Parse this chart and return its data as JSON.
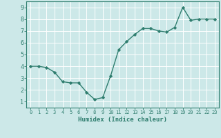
{
  "xlabel": "Humidex (Indice chaleur)",
  "x": [
    0,
    1,
    2,
    3,
    4,
    5,
    6,
    7,
    8,
    9,
    10,
    11,
    12,
    13,
    14,
    15,
    16,
    17,
    18,
    19,
    20,
    21,
    22,
    23
  ],
  "y": [
    4.0,
    4.0,
    3.9,
    3.5,
    2.7,
    2.6,
    2.6,
    1.8,
    1.2,
    1.35,
    3.2,
    5.4,
    6.1,
    6.7,
    7.2,
    7.2,
    7.0,
    6.9,
    7.3,
    9.0,
    7.9,
    8.0,
    8.0,
    8.0
  ],
  "line_color": "#2e7d6e",
  "marker": "D",
  "marker_size": 2.2,
  "bg_color": "#cce8e8",
  "grid_color": "#ffffff",
  "axis_color": "#2e7d6e",
  "tick_label_color": "#2e7d6e",
  "xlabel_color": "#2e7d6e",
  "ylim": [
    0.5,
    9.5
  ],
  "xlim": [
    -0.5,
    23.5
  ],
  "yticks": [
    1,
    2,
    3,
    4,
    5,
    6,
    7,
    8,
    9
  ],
  "xticks": [
    0,
    1,
    2,
    3,
    4,
    5,
    6,
    7,
    8,
    9,
    10,
    11,
    12,
    13,
    14,
    15,
    16,
    17,
    18,
    19,
    20,
    21,
    22,
    23
  ],
  "tick_fontsize": 5.0,
  "ytick_fontsize": 6.0,
  "xlabel_fontsize": 6.5,
  "linewidth": 1.0
}
